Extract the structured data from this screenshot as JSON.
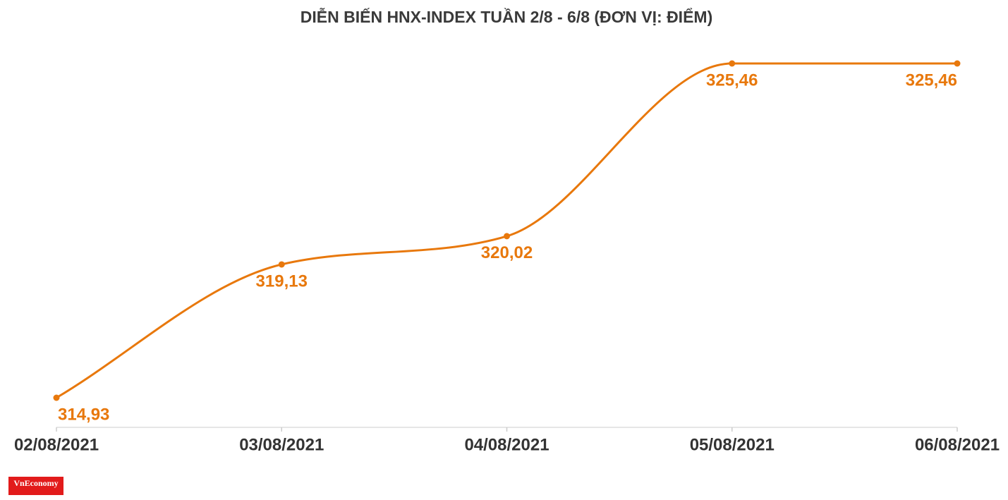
{
  "chart_data": {
    "type": "line",
    "title": "DIỄN BIẾN HNX-INDEX TUẦN 2/8 - 6/8 (ĐƠN VỊ: ĐIỂM)",
    "categories": [
      "02/08/2021",
      "03/08/2021",
      "04/08/2021",
      "05/08/2021",
      "06/08/2021"
    ],
    "series": [
      {
        "color": "#e8780c",
        "values": [
          314.93,
          319.13,
          320.02,
          325.46,
          325.46
        ],
        "value_labels": [
          "314,93",
          "319,13",
          "320,02",
          "325,46",
          "325,46"
        ]
      }
    ]
  },
  "logo": "VnEconomy"
}
